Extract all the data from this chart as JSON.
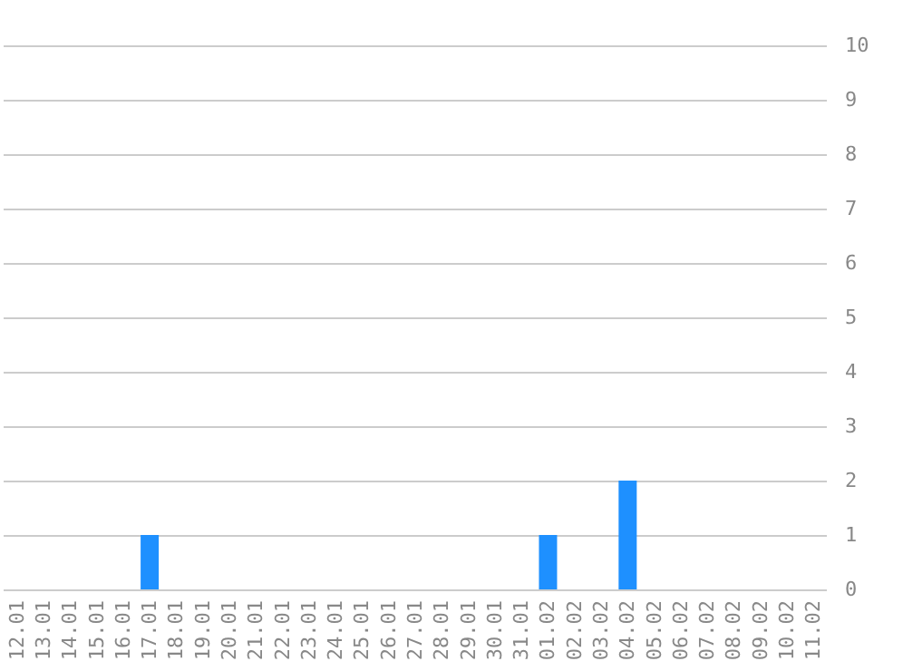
{
  "chart_data": {
    "type": "bar",
    "categories": [
      "12.01",
      "13.01",
      "14.01",
      "15.01",
      "16.01",
      "17.01",
      "18.01",
      "19.01",
      "20.01",
      "21.01",
      "22.01",
      "23.01",
      "24.01",
      "25.01",
      "26.01",
      "27.01",
      "28.01",
      "29.01",
      "30.01",
      "31.01",
      "01.02",
      "02.02",
      "03.02",
      "04.02",
      "05.02",
      "06.02",
      "07.02",
      "08.02",
      "09.02",
      "10.02",
      "11.02"
    ],
    "values": [
      0,
      0,
      0,
      0,
      0,
      1,
      0,
      0,
      0,
      0,
      0,
      0,
      0,
      0,
      0,
      0,
      0,
      0,
      0,
      0,
      1,
      0,
      0,
      2,
      0,
      0,
      0,
      0,
      0,
      0,
      0
    ],
    "color": "#1e90ff",
    "ylim": [
      0,
      10
    ],
    "yticks": [
      0,
      1,
      2,
      3,
      4,
      5,
      6,
      7,
      8,
      9,
      10
    ],
    "grid": "y"
  }
}
